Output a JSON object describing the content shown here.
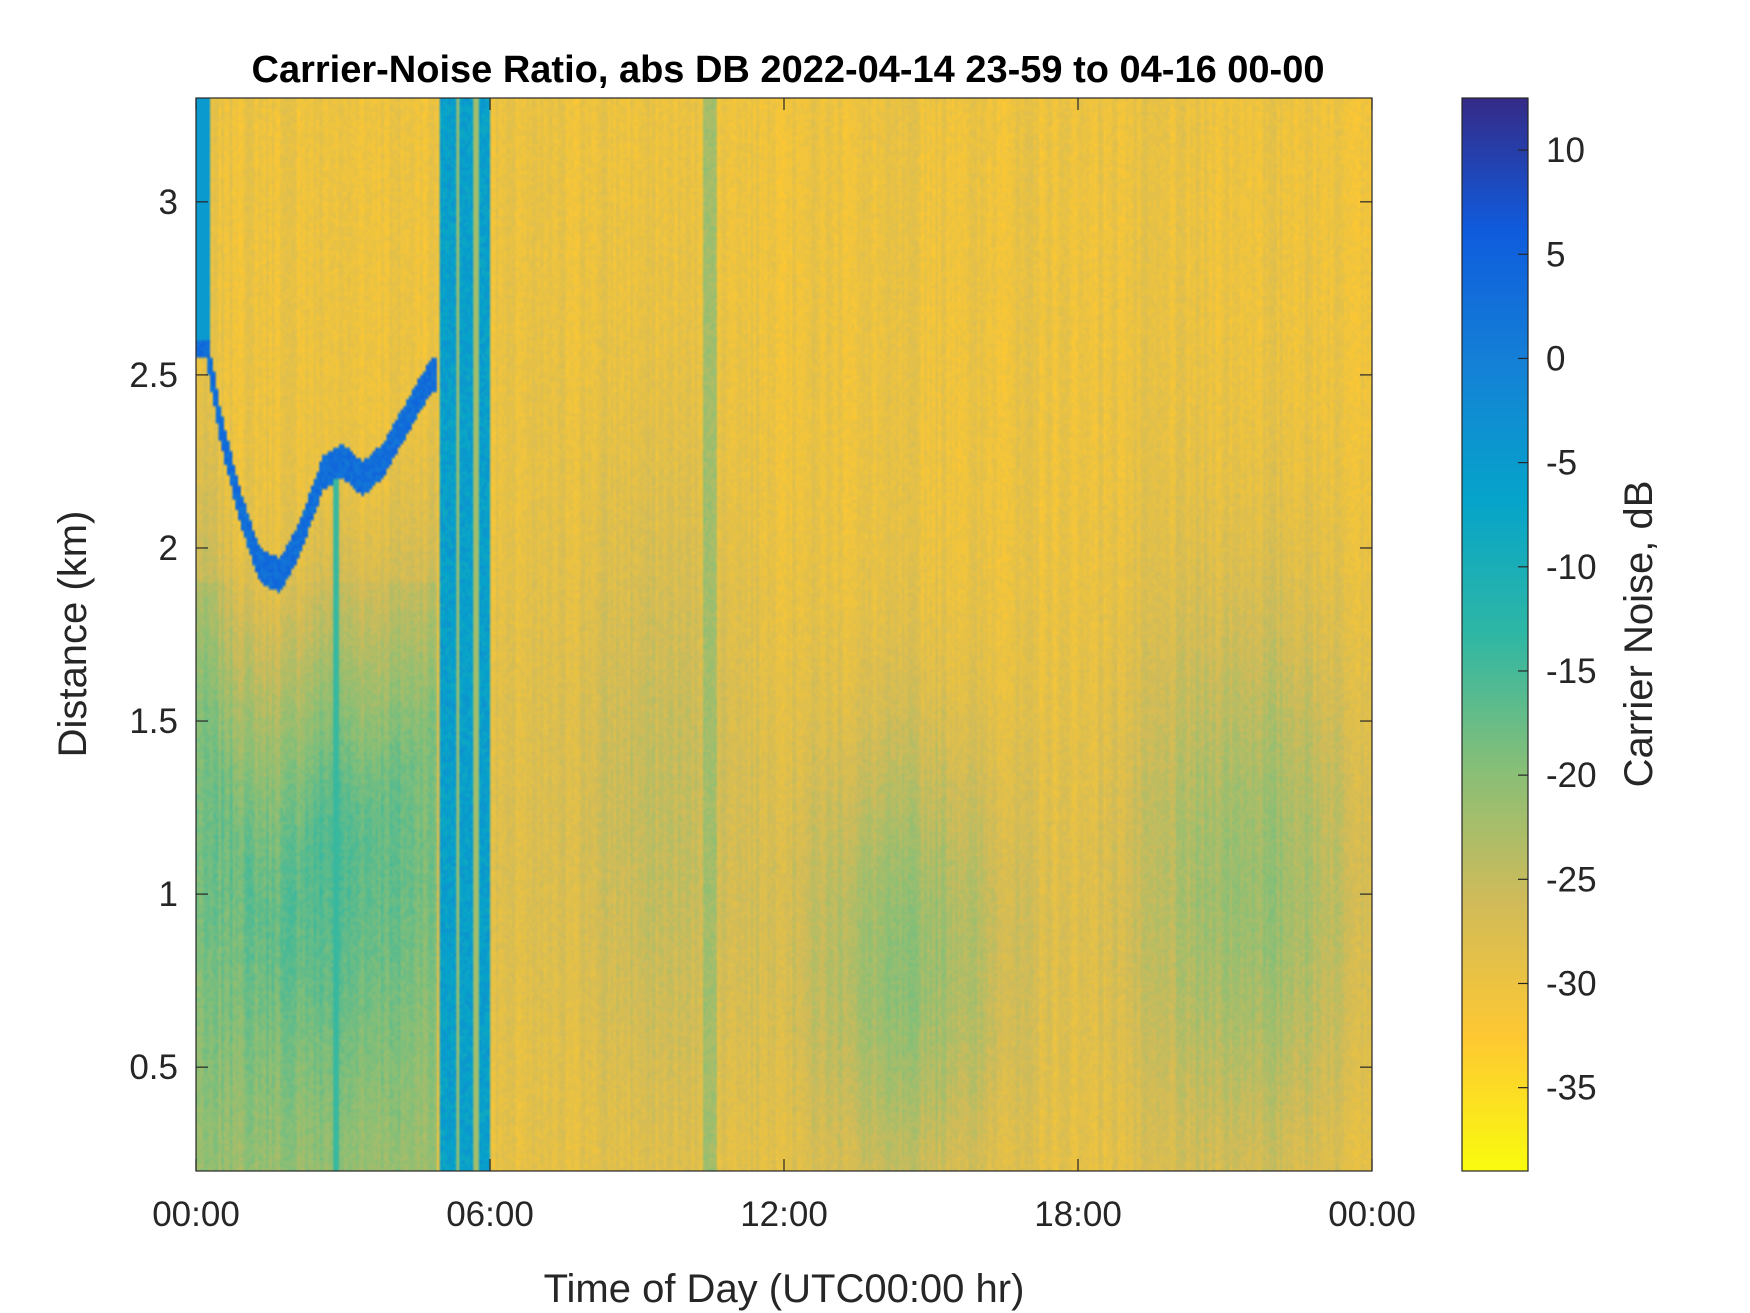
{
  "chart_data": {
    "type": "heatmap",
    "title": "Carrier-Noise Ratio, abs DB 2022-04-14 23-59 to 04-16 00-00",
    "xlabel": "Time of Day (UTC00:00 hr)",
    "ylabel": "Distance (km)",
    "colorbar_label": "Carrier Noise, dB",
    "xlim": [
      0,
      24
    ],
    "ylim": [
      0.2,
      3.3
    ],
    "clim": [
      -39,
      12.5
    ],
    "x_ticks": [
      0,
      6,
      12,
      18,
      24
    ],
    "x_tick_labels": [
      "00:00",
      "06:00",
      "12:00",
      "18:00",
      "00:00"
    ],
    "y_ticks": [
      0.5,
      1,
      1.5,
      2,
      2.5,
      3
    ],
    "y_tick_labels": [
      "0.5",
      "1",
      "1.5",
      "2",
      "2.5",
      "3"
    ],
    "colorbar_ticks": [
      10,
      5,
      0,
      -5,
      -10,
      -15,
      -20,
      -25,
      -30,
      -35
    ],
    "colorbar_tick_labels": [
      "10",
      "5",
      "0",
      "-5",
      "-10",
      "-15",
      "-20",
      "-25",
      "-30",
      "-35"
    ],
    "colormap": "parula",
    "colors": [
      "#352a87",
      "#0f5cdd",
      "#1481d6",
      "#06a4ca",
      "#2eb7a4",
      "#87bf77",
      "#d1bb59",
      "#fec832",
      "#f9fb0e"
    ],
    "background_value": -30,
    "features": [
      {
        "kind": "blue_vertical_band",
        "x_start": 5.0,
        "x_end": 6.0,
        "value": -6
      },
      {
        "kind": "boundary_layer_top",
        "x": [
          0.2,
          0.5,
          0.9,
          1.3,
          1.7,
          2.1,
          2.6,
          3.0,
          3.4,
          3.8,
          4.2,
          4.8
        ],
        "y": [
          2.6,
          2.35,
          2.12,
          1.95,
          1.92,
          2.02,
          2.22,
          2.25,
          2.2,
          2.25,
          2.35,
          2.5
        ],
        "value": 3
      },
      {
        "kind": "weak_band",
        "x": 10.5,
        "value": -22
      },
      {
        "kind": "low_green_region",
        "x": 14.5,
        "y": 0.8,
        "value": -18
      },
      {
        "kind": "low_green_region",
        "x": 21.5,
        "y": 1.0,
        "value": -19
      }
    ]
  }
}
